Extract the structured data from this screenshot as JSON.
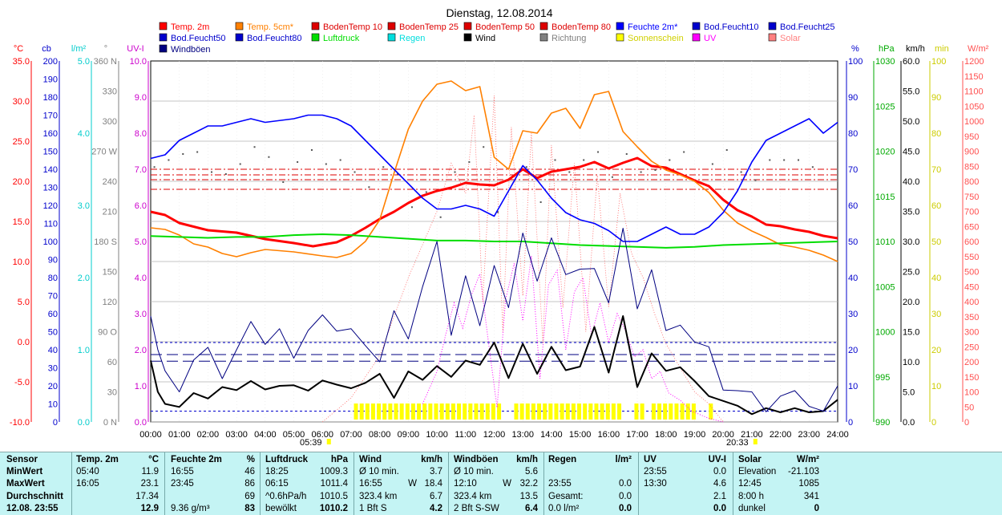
{
  "chart_data": {
    "type": "line",
    "title": "Dienstag, 12.08.2014",
    "x_ticks": [
      "00:00",
      "01:00",
      "02:00",
      "03:00",
      "04:00",
      "05:00",
      "06:00",
      "07:00",
      "08:00",
      "09:00",
      "10:00",
      "11:00",
      "12:00",
      "13:00",
      "14:00",
      "15:00",
      "16:00",
      "17:00",
      "18:00",
      "19:00",
      "20:00",
      "21:00",
      "22:00",
      "23:00",
      "24:00"
    ],
    "sunrise": "05:39",
    "sunset": "20:33",
    "legend": [
      {
        "name": "Temp. 2m",
        "color": "#ff0000"
      },
      {
        "name": "Temp. 5cm*",
        "color": "#ff8000"
      },
      {
        "name": "BodenTemp 10",
        "color": "#dd0000"
      },
      {
        "name": "BodenTemp 25",
        "color": "#dd0000"
      },
      {
        "name": "BodenTemp 50",
        "color": "#dd0000"
      },
      {
        "name": "BodenTemp 80",
        "color": "#dd0000"
      },
      {
        "name": "Feuchte 2m*",
        "color": "#0000ff"
      },
      {
        "name": "Bod.Feucht10",
        "color": "#0000cc"
      },
      {
        "name": "Bod.Feucht25",
        "color": "#0000cc"
      },
      {
        "name": "Bod.Feucht50",
        "color": "#0000cc"
      },
      {
        "name": "Bod.Feucht80",
        "color": "#0000cc"
      },
      {
        "name": "Luftdruck",
        "color": "#00dd00"
      },
      {
        "name": "Regen",
        "color": "#00dddd"
      },
      {
        "name": "Wind",
        "color": "#000000"
      },
      {
        "name": "Richtung",
        "color": "#808080"
      },
      {
        "name": "Sonnenschein",
        "color": "#ffff00"
      },
      {
        "name": "UV",
        "color": "#ff00ff"
      },
      {
        "name": "Solar",
        "color": "#ff8080"
      },
      {
        "name": "Windböen",
        "color": "#000080"
      }
    ],
    "axes": {
      "temp": {
        "unit": "°C",
        "color": "#ff0000",
        "ticks": [
          "35.0",
          "30.0",
          "25.0",
          "20.0",
          "15.0",
          "10.0",
          "5.0",
          "0.0",
          "-5.0",
          "-10.0"
        ]
      },
      "cb": {
        "unit": "cb",
        "color": "#0000cc",
        "ticks": [
          "200",
          "190",
          "180",
          "170",
          "160",
          "150",
          "140",
          "130",
          "120",
          "110",
          "100",
          "90",
          "80",
          "70",
          "60",
          "50",
          "40",
          "30",
          "20",
          "10",
          "0"
        ]
      },
      "rain": {
        "unit": "l/m²",
        "color": "#00cccc",
        "ticks": [
          "5.0",
          "4.0",
          "3.0",
          "2.0",
          "1.0",
          "0.0"
        ]
      },
      "dir": {
        "unit": "°",
        "color": "#808080",
        "ticks": [
          "360 N",
          "330",
          "300",
          "270 W",
          "240",
          "210",
          "180 S",
          "150",
          "120",
          "90 O",
          "60",
          "30",
          "0 N"
        ]
      },
      "uv": {
        "unit": "UV-I",
        "color": "#cc00cc",
        "ticks": [
          "10.0",
          "9.0",
          "8.0",
          "7.0",
          "6.0",
          "5.0",
          "4.0",
          "3.0",
          "2.0",
          "1.0",
          "0.0"
        ]
      },
      "humidity": {
        "unit": "%",
        "color": "#0000cc",
        "ticks": [
          "100",
          "90",
          "80",
          "70",
          "60",
          "50",
          "40",
          "30",
          "20",
          "10",
          "0"
        ]
      },
      "pressure": {
        "unit": "hPa",
        "color": "#00aa00",
        "ticks": [
          "1030",
          "1025",
          "1020",
          "1015",
          "1010",
          "1005",
          "1000",
          "995",
          "990"
        ]
      },
      "wind": {
        "unit": "km/h",
        "color": "#000000",
        "ticks": [
          "60.0",
          "55.0",
          "50.0",
          "45.0",
          "40.0",
          "35.0",
          "30.0",
          "25.0",
          "20.0",
          "15.0",
          "10.0",
          "5.0",
          "0.0"
        ]
      },
      "sun_min": {
        "unit": "min",
        "color": "#cccc00",
        "ticks": [
          "100",
          "90",
          "80",
          "70",
          "60",
          "50",
          "40",
          "30",
          "20",
          "10",
          "0"
        ]
      },
      "solar": {
        "unit": "W/m²",
        "color": "#ff5050",
        "ticks": [
          "1200",
          "1150",
          "1100",
          "1050",
          "1000",
          "950",
          "900",
          "850",
          "800",
          "750",
          "700",
          "650",
          "600",
          "550",
          "500",
          "450",
          "400",
          "350",
          "300",
          "250",
          "200",
          "150",
          "100",
          "50",
          "0"
        ]
      }
    },
    "series": [
      {
        "name": "Temp. 2m",
        "axis": "temp",
        "x": [
          0,
          0.5,
          1,
          2,
          3,
          4,
          5,
          5.67,
          6.5,
          7,
          7.5,
          8,
          8.5,
          9,
          9.5,
          10,
          10.5,
          11,
          11.5,
          12,
          12.5,
          13,
          13.5,
          14,
          14.5,
          15,
          15.5,
          16,
          16.5,
          17,
          17.5,
          18,
          18.5,
          19,
          19.5,
          20,
          20.5,
          21,
          21.5,
          22,
          22.5,
          23,
          23.5,
          24
        ],
        "y": [
          16.2,
          15.8,
          14.8,
          13.9,
          13.6,
          12.8,
          12.3,
          11.9,
          12.4,
          13.2,
          14.2,
          15.3,
          16.2,
          17.3,
          18.2,
          18.8,
          19.2,
          19.8,
          19.6,
          19.5,
          20.2,
          21.5,
          20.4,
          21.2,
          21.5,
          21.8,
          22.4,
          21.6,
          22.3,
          22.9,
          21.9,
          21.7,
          20.9,
          20.1,
          19.4,
          17.7,
          16.4,
          15.6,
          14.6,
          14.4,
          14.0,
          13.7,
          13.2,
          12.9
        ]
      },
      {
        "name": "Temp. 5cm*",
        "axis": "temp",
        "x": [
          0,
          0.5,
          1,
          1.5,
          2,
          2.5,
          3,
          3.5,
          4,
          5,
          6,
          6.5,
          7,
          7.5,
          8,
          8.5,
          9,
          9.5,
          10,
          10.5,
          11,
          11.5,
          12,
          12.5,
          13,
          13.5,
          14,
          14.5,
          15,
          15.5,
          16,
          16.5,
          17,
          17.5,
          18,
          18.5,
          19,
          19.5,
          20,
          20.5,
          21,
          21.5,
          22,
          22.5,
          23,
          23.5,
          24
        ],
        "y": [
          14.2,
          14.0,
          13.3,
          12.2,
          11.8,
          11.0,
          10.6,
          11.1,
          11.5,
          11.2,
          10.7,
          10.5,
          11.0,
          12.5,
          15.2,
          21.0,
          26.5,
          30.0,
          32.1,
          32.5,
          31.3,
          31.8,
          23.0,
          21.5,
          26.3,
          26.0,
          28.5,
          29.1,
          26.6,
          30.8,
          31.2,
          26.2,
          24.3,
          22.5,
          21.4,
          20.8,
          20.0,
          18.6,
          16.4,
          14.8,
          13.8,
          13.0,
          12.1,
          11.8,
          11.4,
          10.8,
          10.0
        ]
      },
      {
        "name": "Feuchte 2m*",
        "axis": "humidity",
        "x": [
          0,
          0.5,
          1,
          1.5,
          2,
          2.5,
          3,
          3.5,
          4,
          5,
          5.5,
          6,
          6.5,
          7,
          7.5,
          8,
          8.5,
          9,
          9.5,
          10,
          10.5,
          11,
          11.5,
          12,
          12.5,
          13,
          13.5,
          14,
          14.5,
          15,
          15.5,
          16,
          16.5,
          17,
          17.5,
          18,
          18.5,
          19,
          19.5,
          20,
          20.5,
          21,
          21.5,
          22,
          22.5,
          23,
          23.5,
          24
        ],
        "y": [
          73,
          74,
          78,
          80,
          82,
          82,
          83,
          84,
          83,
          84,
          85,
          85,
          84,
          82,
          78,
          74,
          70,
          66,
          62,
          59,
          59,
          60,
          59,
          57,
          64,
          71,
          67,
          62,
          58,
          56,
          55,
          53,
          50,
          50,
          52,
          54,
          52,
          52,
          54,
          58,
          64,
          72,
          78,
          80,
          82,
          84,
          80,
          83
        ]
      },
      {
        "name": "Luftdruck",
        "axis": "pressure",
        "x": [
          0,
          1,
          2,
          3,
          4,
          5,
          6,
          7,
          8,
          9,
          10,
          11,
          12,
          13,
          14,
          15,
          16,
          17,
          18,
          19,
          20,
          21,
          22,
          23,
          24
        ],
        "y": [
          1010.6,
          1010.5,
          1010.4,
          1010.5,
          1010.5,
          1010.7,
          1010.8,
          1010.7,
          1010.5,
          1010.3,
          1010.1,
          1010.1,
          1010.0,
          1010.0,
          1009.8,
          1009.6,
          1009.5,
          1009.4,
          1009.3,
          1009.4,
          1009.6,
          1009.7,
          1009.8,
          1009.9,
          1010.0
        ]
      },
      {
        "name": "Wind",
        "axis": "wind",
        "x": [
          0,
          0.25,
          0.5,
          1,
          1.5,
          2,
          2.5,
          3,
          3.5,
          4,
          4.5,
          5,
          5.5,
          6,
          6.5,
          7,
          7.5,
          8,
          8.5,
          9,
          9.5,
          10,
          10.5,
          11,
          11.5,
          12,
          12.5,
          13,
          13.5,
          14,
          14.5,
          15,
          15.5,
          16,
          16.5,
          17,
          17.5,
          18,
          18.5,
          19,
          19.5,
          20,
          20.5,
          21,
          21.5,
          22,
          22.5,
          23,
          23.5,
          24
        ],
        "y": [
          10.2,
          5.0,
          3.0,
          2.5,
          4.8,
          3.9,
          5.8,
          5.3,
          6.8,
          5.4,
          6.0,
          6.1,
          5.2,
          6.9,
          6.2,
          5.6,
          6.5,
          8.0,
          4.0,
          8.4,
          7.0,
          9.3,
          7.5,
          10.2,
          9.5,
          13.2,
          7.3,
          13.0,
          8.0,
          12.5,
          8.6,
          9.2,
          15.8,
          8.2,
          17.6,
          5.8,
          11.4,
          8.5,
          9.1,
          6.8,
          4.3,
          3.5,
          2.7,
          1.3,
          2.3,
          1.6,
          2.3,
          1.6,
          1.8,
          3.7
        ]
      },
      {
        "name": "Windböen",
        "axis": "wind",
        "x": [
          0,
          0.25,
          0.5,
          1,
          1.5,
          2,
          2.5,
          3,
          3.5,
          4,
          4.5,
          5,
          5.5,
          6,
          6.5,
          7,
          7.5,
          8,
          8.5,
          9,
          9.5,
          10,
          10.5,
          11,
          11.5,
          12,
          12.5,
          13,
          13.5,
          14,
          14.5,
          15,
          15.5,
          16,
          16.5,
          17,
          17.5,
          18,
          18.5,
          19,
          19.5,
          20,
          20.5,
          21,
          21.5,
          22,
          22.5,
          23,
          23.5,
          24
        ],
        "y": [
          17.6,
          12.0,
          8.5,
          5.0,
          10.3,
          12.4,
          7.2,
          12.0,
          16.7,
          12.9,
          15.5,
          10.6,
          15.2,
          17.8,
          15.1,
          15.5,
          12.7,
          10.0,
          18.5,
          13.8,
          22.5,
          30.0,
          14.4,
          24.3,
          16.0,
          26.0,
          19.0,
          31.4,
          23.4,
          30.6,
          24.5,
          25.4,
          25.5,
          19.8,
          32.2,
          18.8,
          25.3,
          15.2,
          16.1,
          13.3,
          12.5,
          5.3,
          5.2,
          5.0,
          1.7,
          4.3,
          5.2,
          2.6,
          1.8,
          6.0
        ]
      }
    ],
    "reference_lines": [
      {
        "name": "Windböen Durchschnitt",
        "axis": "wind",
        "value": 11.2
      },
      {
        "name": "Wind Durchschnitt",
        "axis": "wind",
        "value": 10.1
      }
    ]
  },
  "table": {
    "headers": [
      {
        "label": "Sensor",
        "unit": ""
      },
      {
        "label": "Temp. 2m",
        "unit": "°C"
      },
      {
        "label": "Feuchte 2m",
        "unit": "%"
      },
      {
        "label": "Luftdruck",
        "unit": "hPa"
      },
      {
        "label": "Wind",
        "unit": "km/h"
      },
      {
        "label": "Windböen",
        "unit": "km/h"
      },
      {
        "label": "Regen",
        "unit": "l/m²"
      },
      {
        "label": "UV",
        "unit": "UV-I"
      },
      {
        "label": "Solar",
        "unit": "W/m²"
      }
    ],
    "row_labels": [
      "MinWert",
      "MaxWert",
      "Durchschnitt",
      "12.08. 23:55"
    ],
    "temp": [
      [
        "05:40",
        "11.9"
      ],
      [
        "16:05",
        "23.1"
      ],
      [
        "",
        "17.34"
      ],
      [
        "",
        "12.9"
      ]
    ],
    "feuchte": [
      [
        "16:55",
        "46"
      ],
      [
        "23:45",
        "86"
      ],
      [
        "",
        "69"
      ],
      [
        "9.36 g/m³",
        "83"
      ]
    ],
    "luftdruck": [
      [
        "18:25",
        "1009.3"
      ],
      [
        "06:15",
        "1011.4"
      ],
      [
        "^0.6hPa/h",
        "1010.5"
      ],
      [
        "bewölkt",
        "1010.2"
      ]
    ],
    "wind": [
      [
        "Ø 10 min.",
        "",
        "3.7"
      ],
      [
        "16:55",
        "W",
        "18.4"
      ],
      [
        "323.4 km",
        "",
        "6.7"
      ],
      [
        "1 Bft S",
        "",
        "4.2"
      ]
    ],
    "windboeen": [
      [
        "Ø 10 min.",
        "",
        "5.6"
      ],
      [
        "12:10",
        "W",
        "32.2"
      ],
      [
        "323.4 km",
        "",
        "13.5"
      ],
      [
        "2 Bft S-SW",
        "",
        "6.4"
      ]
    ],
    "regen": [
      [
        "",
        ""
      ],
      [
        "23:55",
        "0.0"
      ],
      [
        "Gesamt:",
        "0.0"
      ],
      [
        "0.0 l/m²",
        "0.0"
      ]
    ],
    "uv": [
      [
        "23:55",
        "0.0"
      ],
      [
        "13:30",
        "4.6"
      ],
      [
        "",
        "2.1"
      ],
      [
        "",
        "0.0"
      ]
    ],
    "solar": [
      [
        "Elevation",
        "-21.103"
      ],
      [
        "12:45",
        "1085"
      ],
      [
        "8:00 h",
        "341"
      ],
      [
        "dunkel",
        "0"
      ]
    ]
  }
}
